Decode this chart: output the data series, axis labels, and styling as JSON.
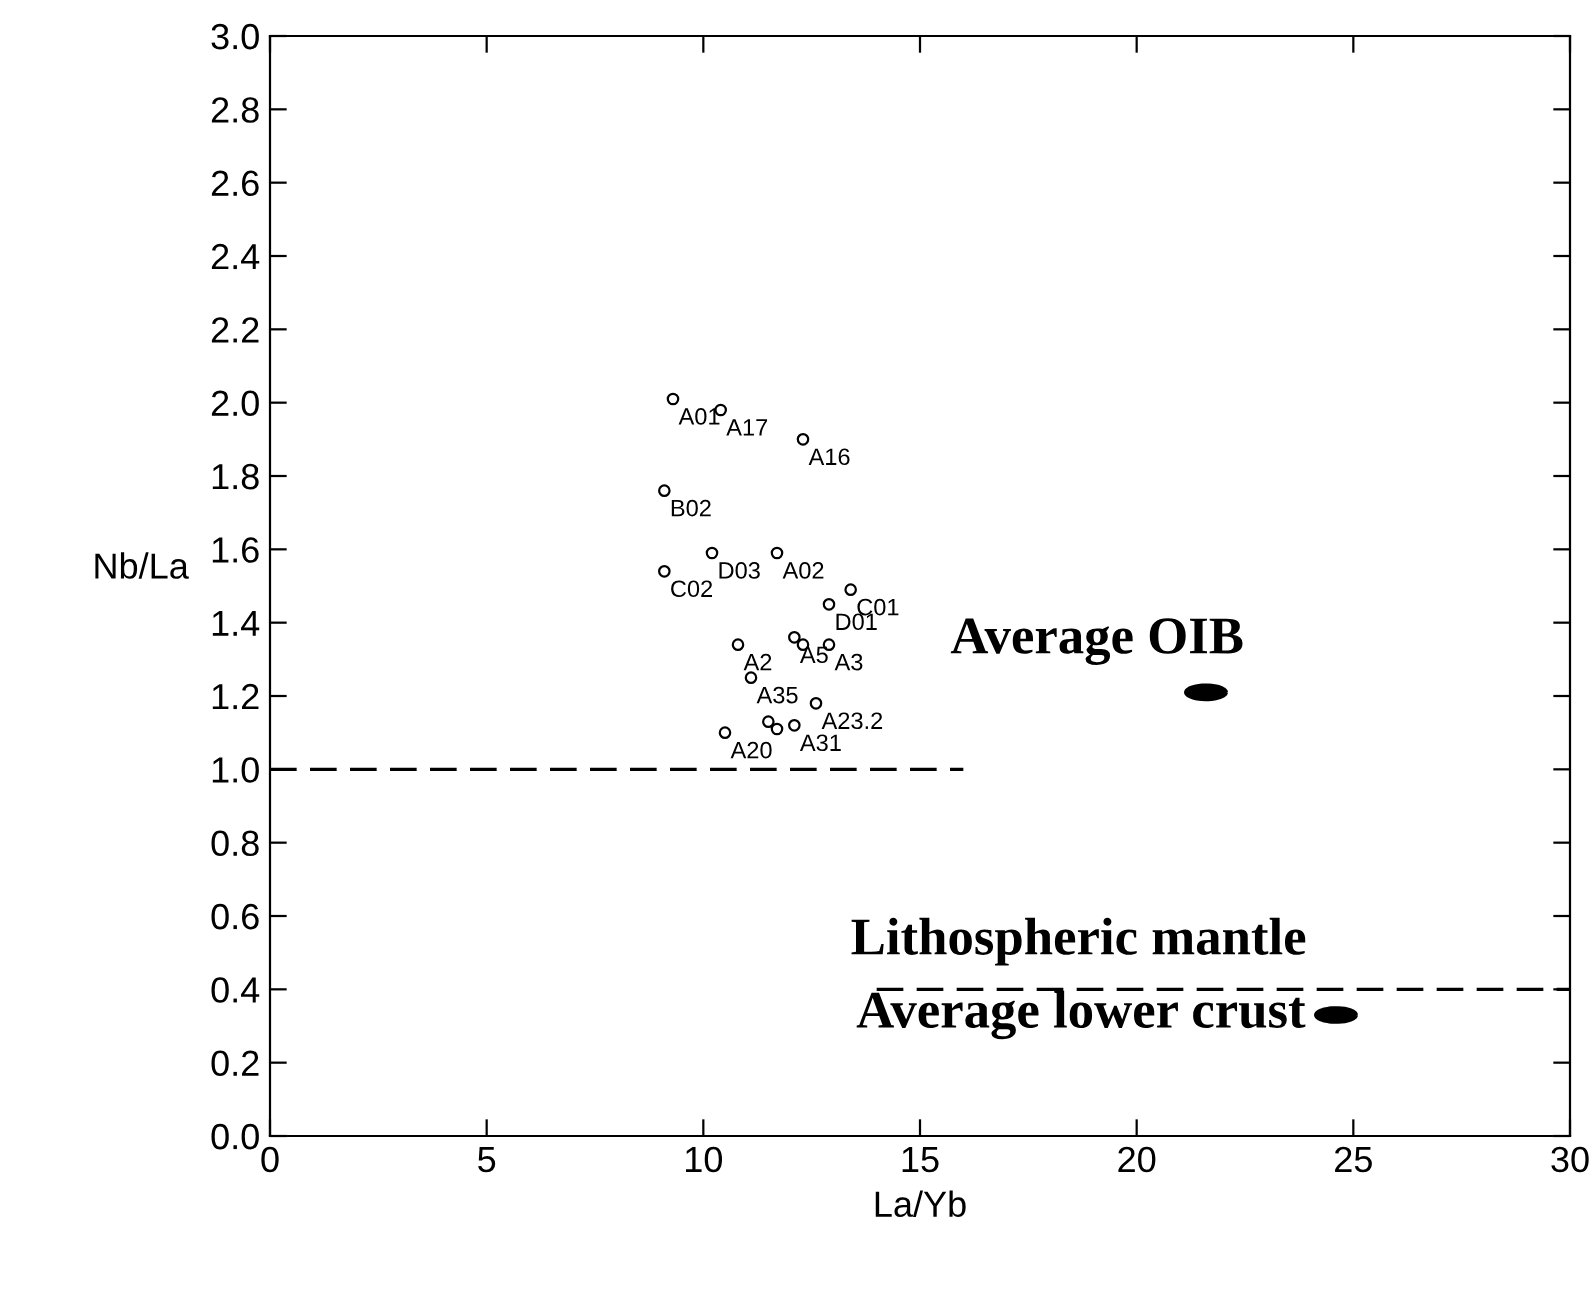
{
  "chart_data": {
    "type": "scatter",
    "xlabel": "La/Yb",
    "ylabel": "Nb/La",
    "xlim": [
      0,
      30
    ],
    "ylim": [
      0,
      3.0
    ],
    "xticks": [
      0,
      5,
      10,
      15,
      20,
      25,
      30
    ],
    "yticks": [
      {
        "value": 0,
        "label": "0.0"
      },
      {
        "value": 0.2,
        "label": "0.2"
      },
      {
        "value": 0.4,
        "label": "0.4"
      },
      {
        "value": 0.6,
        "label": "0.6"
      },
      {
        "value": 0.8,
        "label": "0.8"
      },
      {
        "value": 1.0,
        "label": "1.0"
      },
      {
        "value": 1.2,
        "label": "1.2"
      },
      {
        "value": 1.4,
        "label": "1.4"
      },
      {
        "value": 1.6,
        "label": "1.6"
      },
      {
        "value": 1.8,
        "label": "1.8"
      },
      {
        "value": 2.0,
        "label": "2.0"
      },
      {
        "value": 2.2,
        "label": "2.2"
      },
      {
        "value": 2.4,
        "label": "2.4"
      },
      {
        "value": 2.6,
        "label": "2.6"
      },
      {
        "value": 2.8,
        "label": "2.8"
      },
      {
        "value": 3.0,
        "label": "3.0"
      }
    ],
    "grid": false,
    "legend": false,
    "series": [
      {
        "marker": "circle",
        "color": "#000000",
        "x": [
          9.3,
          10.4,
          12.3,
          9.1,
          10.2,
          11.7,
          9.1,
          13.4,
          12.9,
          10.8,
          12.1,
          12.3,
          12.9,
          11.1,
          12.6,
          11.5,
          10.5,
          11.7,
          12.1
        ],
        "values": [
          2.01,
          1.98,
          1.9,
          1.76,
          1.59,
          1.59,
          1.54,
          1.49,
          1.45,
          1.34,
          1.36,
          1.34,
          1.34,
          1.25,
          1.18,
          1.13,
          1.1,
          1.11,
          1.12
        ]
      },
      {
        "color": "#000000",
        "x": [
          21.6,
          24.6
        ],
        "values": [
          1.21,
          0.33
        ]
      },
      {
        "type": "line",
        "line_style": "dashed",
        "color": "#000000",
        "x": [
          0,
          16
        ],
        "values": [
          1.0,
          1.0
        ]
      },
      {
        "type": "line",
        "line_style": "dashed",
        "color": "#000000",
        "x": [
          14,
          30
        ],
        "values": [
          0.4,
          0.4
        ]
      }
    ],
    "annotations": [
      {
        "text": "A01",
        "x": 9.3,
        "y": 2.01
      },
      {
        "text": "A17",
        "x": 10.4,
        "y": 1.98
      },
      {
        "text": "A16",
        "x": 12.3,
        "y": 1.9
      },
      {
        "text": "B02",
        "x": 9.1,
        "y": 1.76
      },
      {
        "text": "D03",
        "x": 10.2,
        "y": 1.59
      },
      {
        "text": "A02",
        "x": 11.7,
        "y": 1.59
      },
      {
        "text": "C02",
        "x": 9.1,
        "y": 1.54
      },
      {
        "text": "C01",
        "x": 13.4,
        "y": 1.49
      },
      {
        "text": "D01",
        "x": 12.9,
        "y": 1.45
      },
      {
        "text": "A2",
        "x": 10.8,
        "y": 1.34
      },
      {
        "text": "A5",
        "x": 12.1,
        "y": 1.36
      },
      {
        "text": "A3",
        "x": 12.9,
        "y": 1.34
      },
      {
        "text": "A35",
        "x": 11.1,
        "y": 1.25
      },
      {
        "text": "A23.2",
        "x": 12.6,
        "y": 1.18
      },
      {
        "text": "A20",
        "x": 10.5,
        "y": 1.1
      },
      {
        "text": "A31",
        "x": 12.1,
        "y": 1.12
      },
      {
        "text": "Average OIB",
        "x": 21.6,
        "y": 1.21
      },
      {
        "text": "Lithospheric mantle",
        "x": 22,
        "y": 0.4
      },
      {
        "text": "Average lower crust",
        "x": 24.6,
        "y": 0.33
      }
    ]
  }
}
